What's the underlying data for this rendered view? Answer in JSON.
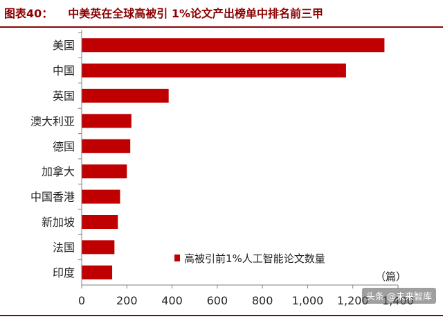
{
  "figure": {
    "label": "图表40：",
    "title": "中美英在全球高被引 1%论文产出榜单中排名前三甲",
    "watermark": "头条 @未来智库"
  },
  "chart_data": {
    "type": "bar",
    "orientation": "horizontal",
    "categories": [
      "美国",
      "中国",
      "英国",
      "澳大利亚",
      "德国",
      "加拿大",
      "中国香港",
      "新加坡",
      "法国",
      "印度"
    ],
    "series": [
      {
        "name": "高被引前1%人工智能论文数量",
        "values": [
          1340,
          1170,
          385,
          220,
          215,
          200,
          170,
          160,
          145,
          135
        ]
      }
    ],
    "x_ticks": [
      "0",
      "200",
      "400",
      "600",
      "800",
      "1,000",
      "1,200",
      "1,400"
    ],
    "xlim": [
      0,
      1400
    ],
    "unit_label": "（篇）",
    "legend_position": "lower-right",
    "grid": false,
    "bar_color": "#c00000"
  }
}
